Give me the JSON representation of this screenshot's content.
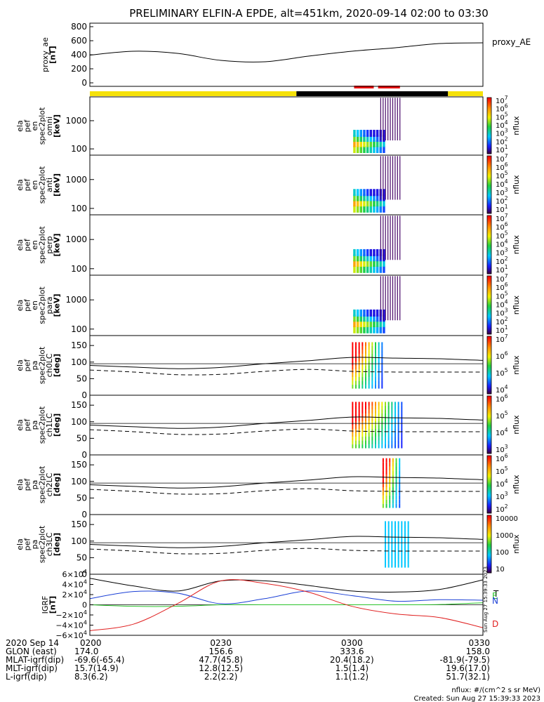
{
  "title": "PRELIMINARY ELFIN-A EPDE, alt=451km, 2020-09-14 02:00 to 03:30",
  "chart_data": [
    {
      "type": "line",
      "name": "proxy_ae",
      "ylabel": [
        "proxy_ae",
        "[nT]"
      ],
      "legend": "proxy_AE",
      "ylim": [
        -50,
        850
      ],
      "yticks": [
        "800",
        "600",
        "400",
        "200",
        "0"
      ],
      "x_min": [
        0,
        10,
        20,
        30,
        40,
        50,
        60,
        70,
        80,
        90
      ],
      "values": [
        395,
        450,
        420,
        320,
        300,
        380,
        450,
        500,
        560,
        570
      ]
    },
    {
      "type": "heatmap",
      "name": "spec2plot_omni",
      "ylabel": [
        "ela",
        "pef",
        "en",
        "spec2plot",
        "omni",
        "[keV]"
      ],
      "yticks": [
        "1000",
        "100"
      ],
      "ylog": true,
      "colorbar": {
        "label": "nflux",
        "ticks": [
          "10^7",
          "10^6",
          "10^5",
          "10^4",
          "10^3",
          "10^2",
          "10^1"
        ]
      }
    },
    {
      "type": "heatmap",
      "name": "spec2plot_anti",
      "ylabel": [
        "ela",
        "pef",
        "en",
        "spec2plot",
        "anti",
        "[keV]"
      ],
      "yticks": [
        "1000",
        "100"
      ],
      "ylog": true,
      "colorbar": {
        "label": "nflux",
        "ticks": [
          "10^7",
          "10^6",
          "10^5",
          "10^4",
          "10^3",
          "10^2",
          "10^1"
        ]
      }
    },
    {
      "type": "heatmap",
      "name": "spec2plot_perp",
      "ylabel": [
        "ela",
        "pef",
        "en",
        "spec2plot",
        "perp",
        "[keV]"
      ],
      "yticks": [
        "1000",
        "100"
      ],
      "ylog": true,
      "colorbar": {
        "label": "nflux",
        "ticks": [
          "10^7",
          "10^6",
          "10^5",
          "10^4",
          "10^3",
          "10^2",
          "10^1"
        ]
      }
    },
    {
      "type": "heatmap",
      "name": "spec2plot_para",
      "ylabel": [
        "ela",
        "pef",
        "en",
        "spec2plot",
        "para",
        "[keV]"
      ],
      "yticks": [
        "1000",
        "100"
      ],
      "ylog": true,
      "colorbar": {
        "label": "nflux",
        "ticks": [
          "10^7",
          "10^6",
          "10^5",
          "10^4",
          "10^3",
          "10^2",
          "10^1"
        ]
      }
    },
    {
      "type": "heatmap",
      "name": "spec2plot_ch0LC",
      "ylabel": [
        "ela",
        "pef",
        "pa",
        "spec2plot",
        "ch0LC",
        "[deg]"
      ],
      "yticks": [
        "150",
        "100",
        "50",
        "0"
      ],
      "ylim": [
        0,
        180
      ],
      "colorbar": {
        "label": "nflux",
        "ticks": [
          "10^7",
          "10^6",
          "10^5",
          "10^4"
        ]
      }
    },
    {
      "type": "heatmap",
      "name": "spec2plot_ch1LC",
      "ylabel": [
        "ela",
        "pef",
        "pa",
        "spec2plot",
        "ch1LC",
        "[deg]"
      ],
      "yticks": [
        "150",
        "100",
        "50",
        "0"
      ],
      "ylim": [
        0,
        180
      ],
      "colorbar": {
        "label": "nflux",
        "ticks": [
          "10^6",
          "10^5",
          "10^4",
          "10^3"
        ]
      }
    },
    {
      "type": "heatmap",
      "name": "spec2plot_ch2LC",
      "ylabel": [
        "ela",
        "pef",
        "pa",
        "spec2plot",
        "ch2LC",
        "[deg]"
      ],
      "yticks": [
        "150",
        "100",
        "50",
        "0"
      ],
      "ylim": [
        0,
        180
      ],
      "colorbar": {
        "label": "nflux",
        "ticks": [
          "10^6",
          "10^5",
          "10^4",
          "10^3",
          "10^2"
        ]
      }
    },
    {
      "type": "heatmap",
      "name": "spec2plot_ch3LC",
      "ylabel": [
        "ela",
        "pef",
        "pa",
        "spec2plot",
        "ch3LC",
        "[deg]"
      ],
      "yticks": [
        "150",
        "100",
        "50",
        "0"
      ],
      "ylim": [
        0,
        180
      ],
      "colorbar": {
        "label": "nflux",
        "ticks": [
          "10000",
          "1000",
          "100",
          "10"
        ]
      }
    },
    {
      "type": "line",
      "name": "IGRF",
      "ylabel": [
        "IGRF",
        "[nT]"
      ],
      "ylim": [
        -60000,
        60000
      ],
      "yticks": [
        "6×10^4",
        "4×10^4",
        "2×10^4",
        "0",
        "−2×10^4",
        "−4×10^4",
        "−6×10^4"
      ],
      "x_min": [
        0,
        10,
        20,
        30,
        40,
        50,
        60,
        70,
        80,
        90
      ],
      "series": [
        {
          "name": "T",
          "color": "#000000",
          "values": [
            52000,
            37000,
            27000,
            47000,
            47000,
            38000,
            27000,
            25000,
            30000,
            49000
          ]
        },
        {
          "name": "E",
          "color": "#2bc42b",
          "values": [
            0,
            -3000,
            -3000,
            0,
            0,
            0,
            0,
            0,
            500,
            4000
          ]
        },
        {
          "name": "N",
          "color": "#1a3fd6",
          "values": [
            12000,
            26000,
            23000,
            2000,
            12000,
            27000,
            18000,
            7000,
            10000,
            9000
          ]
        },
        {
          "name": "D",
          "color": "#e02020",
          "values": [
            -51000,
            -38000,
            2000,
            47000,
            42000,
            25000,
            -3000,
            -18000,
            -25000,
            -45000
          ]
        }
      ],
      "side_stamp": "Sun Aug 27 15:39:33 2023"
    }
  ],
  "magenta_ref_line": {
    "ylabel_deg": 95,
    "dashed_deg": 68
  },
  "ephemeris_colors": {
    "yellow": "#f5e10a",
    "black": "#000000",
    "red": "#ee1111"
  },
  "xaxis": {
    "ticks": [
      {
        "label": "0200",
        "min": 0
      },
      {
        "label": "0230",
        "min": 30
      },
      {
        "label": "0300",
        "min": 60
      },
      {
        "label": "0330",
        "min": 90
      }
    ]
  },
  "orbit_table": {
    "header": "2020 Sep 14",
    "rows": [
      {
        "label": "GLON (east)",
        "values": [
          "174.0",
          "156.6",
          "333.6",
          "158.0"
        ]
      },
      {
        "label": "MLAT-igrf(dip)",
        "values": [
          "-69.6(-65.4)",
          "47.7(45.8)",
          "20.4(18.2)",
          "-81.9(-79.5)"
        ]
      },
      {
        "label": "MLT-igrf(dip)",
        "values": [
          "15.7(14.9)",
          "12.8(12.5)",
          "1.5(1.4)",
          "19.6(17.0)"
        ]
      },
      {
        "label": "L-igrf(dip)",
        "values": [
          "8.3(6.2)",
          "2.2(2.2)",
          "1.1(1.2)",
          "51.7(32.1)"
        ]
      }
    ]
  },
  "footer": {
    "units": "nflux: #/(cm^2 s sr MeV)",
    "created": "Created: Sun Aug 27 15:39:33 2023"
  }
}
